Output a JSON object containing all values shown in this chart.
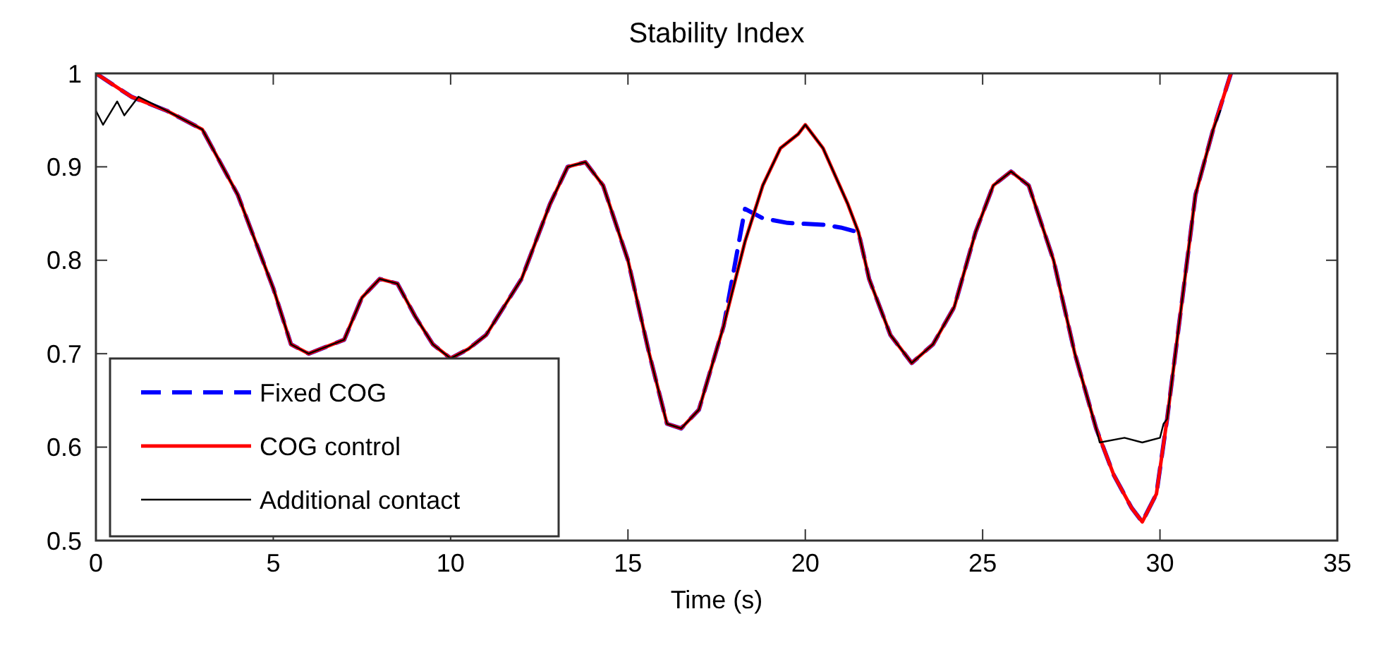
{
  "chart_data": {
    "type": "line",
    "title": "Stability Index",
    "xlabel": "Time (s)",
    "xlim": [
      0,
      35
    ],
    "ylim": [
      0.5,
      1
    ],
    "xticks": [
      0,
      5,
      10,
      15,
      20,
      25,
      30,
      35
    ],
    "yticks": [
      0.5,
      0.6,
      0.7,
      0.8,
      0.9,
      1
    ],
    "grid": false,
    "legend": "bottom left",
    "series": [
      {
        "name": "Fixed COG",
        "color": "#0000ff",
        "line_style": "dashed",
        "x": [
          0,
          1,
          2,
          3,
          4,
          5,
          5.5,
          6,
          7,
          7.5,
          8,
          8.5,
          9,
          9.5,
          10,
          10.5,
          11,
          12,
          12.8,
          13.3,
          13.8,
          14.3,
          15,
          15.6,
          16.1,
          16.5,
          17,
          17.7,
          18.3,
          18.8,
          19.5,
          20.5,
          21,
          21.5,
          21.8,
          22.4,
          23,
          23.6,
          24.2,
          24.8,
          25.3,
          25.8,
          26.3,
          27,
          27.6,
          28.2,
          28.7,
          29.2,
          29.5,
          29.9,
          30.2,
          30.6,
          31,
          31.5,
          32
        ],
        "values": [
          1,
          0.975,
          0.96,
          0.94,
          0.87,
          0.77,
          0.71,
          0.7,
          0.715,
          0.76,
          0.78,
          0.775,
          0.74,
          0.71,
          0.695,
          0.705,
          0.72,
          0.78,
          0.86,
          0.9,
          0.905,
          0.88,
          0.8,
          0.7,
          0.625,
          0.62,
          0.64,
          0.73,
          0.855,
          0.845,
          0.84,
          0.838,
          0.835,
          0.83,
          0.78,
          0.72,
          0.69,
          0.71,
          0.75,
          0.83,
          0.88,
          0.895,
          0.88,
          0.8,
          0.7,
          0.62,
          0.57,
          0.535,
          0.52,
          0.55,
          0.63,
          0.75,
          0.87,
          0.94,
          1
        ]
      },
      {
        "name": "COG control",
        "color": "#ff0000",
        "line_style": "solid",
        "x": [
          0,
          1,
          2,
          3,
          4,
          5,
          5.5,
          6,
          7,
          7.5,
          8,
          8.5,
          9,
          9.5,
          10,
          10.5,
          11,
          12,
          12.8,
          13.3,
          13.8,
          14.3,
          15,
          15.6,
          16.1,
          16.5,
          17,
          17.7,
          18.3,
          18.8,
          19.3,
          19.8,
          20,
          20.5,
          21.2,
          21.5,
          21.8,
          22.4,
          23,
          23.6,
          24.2,
          24.8,
          25.3,
          25.8,
          26.3,
          27,
          27.6,
          28.2,
          28.7,
          29.2,
          29.5,
          29.9,
          30.2,
          30.6,
          31,
          31.5,
          32
        ],
        "values": [
          1,
          0.975,
          0.96,
          0.94,
          0.87,
          0.77,
          0.71,
          0.7,
          0.715,
          0.76,
          0.78,
          0.775,
          0.74,
          0.71,
          0.695,
          0.705,
          0.72,
          0.78,
          0.86,
          0.9,
          0.905,
          0.88,
          0.8,
          0.7,
          0.625,
          0.62,
          0.64,
          0.73,
          0.82,
          0.88,
          0.92,
          0.935,
          0.945,
          0.92,
          0.86,
          0.83,
          0.78,
          0.72,
          0.69,
          0.71,
          0.75,
          0.83,
          0.88,
          0.895,
          0.88,
          0.8,
          0.7,
          0.62,
          0.57,
          0.535,
          0.52,
          0.55,
          0.63,
          0.75,
          0.87,
          0.94,
          1
        ]
      },
      {
        "name": "Additional contact",
        "color": "#000000",
        "line_style": "solid",
        "x": [
          0,
          0.2,
          0.6,
          0.8,
          1.2,
          2,
          3,
          4,
          5,
          5.5,
          6,
          7,
          7.5,
          8,
          8.5,
          9,
          9.5,
          10,
          10.5,
          11,
          12,
          12.8,
          13.3,
          13.8,
          14.3,
          15,
          15.6,
          16.1,
          16.5,
          17,
          17.7,
          18.3,
          18.8,
          19.3,
          19.8,
          20,
          20.5,
          21.2,
          21.5,
          21.8,
          22.4,
          23,
          23.6,
          24.2,
          24.8,
          25.3,
          25.8,
          26.3,
          27,
          27.6,
          28.2,
          28.3,
          29,
          29.5,
          30,
          30.1,
          30.2,
          30.6,
          31,
          31.5,
          31.7
        ],
        "values": [
          0.96,
          0.945,
          0.97,
          0.955,
          0.975,
          0.96,
          0.94,
          0.87,
          0.77,
          0.71,
          0.7,
          0.715,
          0.76,
          0.78,
          0.775,
          0.74,
          0.71,
          0.695,
          0.705,
          0.72,
          0.78,
          0.86,
          0.9,
          0.905,
          0.88,
          0.8,
          0.7,
          0.625,
          0.62,
          0.64,
          0.73,
          0.82,
          0.88,
          0.92,
          0.935,
          0.945,
          0.92,
          0.86,
          0.83,
          0.78,
          0.72,
          0.69,
          0.71,
          0.75,
          0.83,
          0.88,
          0.895,
          0.88,
          0.8,
          0.7,
          0.62,
          0.605,
          0.61,
          0.605,
          0.61,
          0.625,
          0.63,
          0.75,
          0.87,
          0.94,
          0.96
        ]
      }
    ]
  }
}
